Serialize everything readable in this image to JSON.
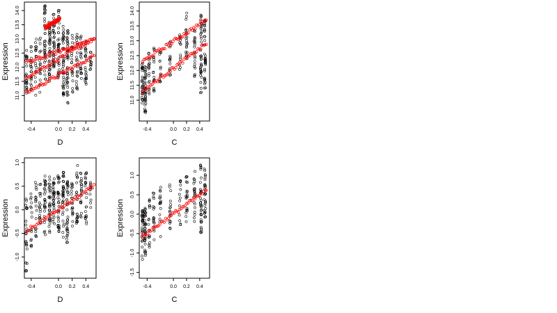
{
  "chart_data": [
    {
      "type": "scatter",
      "xlabel": "D",
      "ylabel": "Expression",
      "xlim": [
        -0.5,
        0.55
      ],
      "ylim": [
        10.1,
        14.3
      ],
      "xticks": [
        "-0.4",
        "0.0",
        "0.2",
        "0.4"
      ],
      "xtick_values": [
        -0.4,
        0.0,
        0.2,
        0.4
      ],
      "yticks": [
        "11.0",
        "11.5",
        "12.0",
        "12.5",
        "13.0",
        "13.5",
        "14.0"
      ],
      "ytick_values": [
        11.0,
        11.5,
        12.0,
        12.5,
        13.0,
        13.5,
        14.0
      ],
      "colors": {
        "observed": "#000000",
        "fitted": "#ff0000"
      },
      "series": [
        {
          "marker": "open-circle",
          "color": "#000000",
          "columns": [
            {
              "x": -0.47,
              "y_min": 10.9,
              "y_max": 12.6,
              "n": 24
            },
            {
              "x": -0.4,
              "y_min": 11.2,
              "y_max": 12.8,
              "n": 20
            },
            {
              "x": -0.33,
              "y_min": 11.0,
              "y_max": 13.0,
              "n": 20
            },
            {
              "x": -0.27,
              "y_min": 11.1,
              "y_max": 13.2,
              "n": 18
            },
            {
              "x": -0.2,
              "y_min": 11.5,
              "y_max": 14.2,
              "n": 36
            },
            {
              "x": -0.13,
              "y_min": 11.5,
              "y_max": 13.6,
              "n": 40
            },
            {
              "x": -0.07,
              "y_min": 11.9,
              "y_max": 13.9,
              "n": 36
            },
            {
              "x": 0.0,
              "y_min": 11.6,
              "y_max": 14.1,
              "n": 38
            },
            {
              "x": 0.07,
              "y_min": 11.0,
              "y_max": 13.5,
              "n": 40
            },
            {
              "x": 0.13,
              "y_min": 10.7,
              "y_max": 13.3,
              "n": 40
            },
            {
              "x": 0.2,
              "y_min": 11.0,
              "y_max": 13.2,
              "n": 22
            },
            {
              "x": 0.27,
              "y_min": 11.2,
              "y_max": 13.4,
              "n": 22
            },
            {
              "x": 0.33,
              "y_min": 11.5,
              "y_max": 13.2,
              "n": 20
            },
            {
              "x": 0.4,
              "y_min": 11.4,
              "y_max": 13.1,
              "n": 24
            },
            {
              "x": 0.47,
              "y_min": 11.9,
              "y_max": 12.6,
              "n": 12
            }
          ]
        },
        {
          "marker": "open-circle",
          "color": "#ff0000",
          "lines": [
            {
              "x": [
                -0.47,
                0.52
              ],
              "y": [
                11.1,
                12.4
              ]
            },
            {
              "x": [
                -0.47,
                0.52
              ],
              "y": [
                11.65,
                13.0
              ]
            },
            {
              "x": [
                -0.47,
                0.52
              ],
              "y": [
                12.15,
                13.0
              ]
            },
            {
              "x": [
                -0.2,
                0.02
              ],
              "y": [
                13.4,
                13.7
              ]
            }
          ]
        }
      ]
    },
    {
      "type": "scatter",
      "xlabel": "C",
      "ylabel": "Expression",
      "xlim": [
        -0.52,
        0.55
      ],
      "ylim": [
        10.3,
        14.3
      ],
      "xticks": [
        "-0.4",
        "0.0",
        "0.2",
        "0.4"
      ],
      "xtick_values": [
        -0.4,
        0.0,
        0.2,
        0.4
      ],
      "yticks": [
        "11.0",
        "11.5",
        "12.0",
        "12.5",
        "13.0",
        "13.5",
        "14.0"
      ],
      "ytick_values": [
        11.0,
        11.5,
        12.0,
        12.5,
        13.0,
        13.5,
        14.0
      ],
      "colors": {
        "observed": "#000000",
        "fitted": "#ff0000"
      },
      "series": [
        {
          "marker": "open-circle",
          "color": "#000000",
          "columns": [
            {
              "x": -0.47,
              "y_min": 10.9,
              "y_max": 12.3,
              "n": 30
            },
            {
              "x": -0.43,
              "y_min": 10.5,
              "y_max": 12.2,
              "n": 40
            },
            {
              "x": -0.37,
              "y_min": 11.2,
              "y_max": 12.7,
              "n": 18
            },
            {
              "x": -0.3,
              "y_min": 11.3,
              "y_max": 12.8,
              "n": 18
            },
            {
              "x": -0.2,
              "y_min": 11.6,
              "y_max": 12.9,
              "n": 16
            },
            {
              "x": -0.05,
              "y_min": 11.8,
              "y_max": 13.0,
              "n": 16
            },
            {
              "x": 0.1,
              "y_min": 12.0,
              "y_max": 13.2,
              "n": 14
            },
            {
              "x": 0.2,
              "y_min": 12.3,
              "y_max": 14.0,
              "n": 22
            },
            {
              "x": 0.32,
              "y_min": 11.8,
              "y_max": 13.5,
              "n": 22
            },
            {
              "x": 0.42,
              "y_min": 11.2,
              "y_max": 14.1,
              "n": 40
            },
            {
              "x": 0.48,
              "y_min": 11.4,
              "y_max": 14.0,
              "n": 36
            }
          ]
        },
        {
          "marker": "open-circle",
          "color": "#ff0000",
          "lines": [
            {
              "x": [
                -0.47,
                0.5
              ],
              "y": [
                11.3,
                12.9
              ]
            },
            {
              "x": [
                -0.47,
                0.5
              ],
              "y": [
                12.3,
                13.7
              ]
            }
          ]
        }
      ]
    },
    {
      "type": "scatter",
      "xlabel": "D",
      "ylabel": "Expression",
      "xlim": [
        -0.5,
        0.55
      ],
      "ylim": [
        -1.45,
        1.1
      ],
      "xticks": [
        "-0.4",
        "0.0",
        "0.2",
        "0.4"
      ],
      "xtick_values": [
        -0.4,
        0.0,
        0.2,
        0.4
      ],
      "yticks": [
        "-1.0",
        "-0.5",
        "0.0",
        "0.5",
        "1.0"
      ],
      "ytick_values": [
        -1.0,
        -0.5,
        0.0,
        0.5,
        1.0
      ],
      "colors": {
        "observed": "#000000",
        "fitted": "#ff0000"
      },
      "series": [
        {
          "marker": "open-circle",
          "color": "#000000",
          "columns": [
            {
              "x": -0.47,
              "y_min": -1.3,
              "y_max": 0.3,
              "n": 24
            },
            {
              "x": -0.4,
              "y_min": -0.8,
              "y_max": 0.4,
              "n": 16
            },
            {
              "x": -0.33,
              "y_min": -0.6,
              "y_max": 0.6,
              "n": 18
            },
            {
              "x": -0.27,
              "y_min": -0.5,
              "y_max": 0.6,
              "n": 18
            },
            {
              "x": -0.2,
              "y_min": -0.6,
              "y_max": 0.8,
              "n": 30
            },
            {
              "x": -0.13,
              "y_min": -0.5,
              "y_max": 0.7,
              "n": 32
            },
            {
              "x": -0.07,
              "y_min": -0.4,
              "y_max": 0.7,
              "n": 30
            },
            {
              "x": 0.0,
              "y_min": -0.5,
              "y_max": 0.9,
              "n": 34
            },
            {
              "x": 0.07,
              "y_min": -0.6,
              "y_max": 0.8,
              "n": 34
            },
            {
              "x": 0.13,
              "y_min": -0.7,
              "y_max": 0.6,
              "n": 36
            },
            {
              "x": 0.2,
              "y_min": -0.4,
              "y_max": 0.6,
              "n": 20
            },
            {
              "x": 0.27,
              "y_min": -0.3,
              "y_max": 1.0,
              "n": 22
            },
            {
              "x": 0.33,
              "y_min": -0.2,
              "y_max": 0.8,
              "n": 20
            },
            {
              "x": 0.4,
              "y_min": -0.3,
              "y_max": 0.8,
              "n": 22
            },
            {
              "x": 0.47,
              "y_min": 0.0,
              "y_max": 0.6,
              "n": 10
            }
          ]
        },
        {
          "marker": "open-circle",
          "color": "#ff0000",
          "lines": [
            {
              "x": [
                -0.47,
                0.52
              ],
              "y": [
                -0.45,
                0.5
              ]
            }
          ]
        }
      ]
    },
    {
      "type": "scatter",
      "xlabel": "C",
      "ylabel": "Expression",
      "xlim": [
        -0.52,
        0.55
      ],
      "ylim": [
        -1.65,
        1.45
      ],
      "xticks": [
        "-0.4",
        "0.0",
        "0.2",
        "0.4"
      ],
      "xtick_values": [
        -0.4,
        0.0,
        0.2,
        0.4
      ],
      "yticks": [
        "-1.5",
        "-1.0",
        "-0.5",
        "0.0",
        "0.5",
        "1.0"
      ],
      "ytick_values": [
        -1.5,
        -1.0,
        -0.5,
        0.0,
        0.5,
        1.0
      ],
      "colors": {
        "observed": "#000000",
        "fitted": "#ff0000"
      },
      "series": [
        {
          "marker": "open-circle",
          "color": "#000000",
          "columns": [
            {
              "x": -0.47,
              "y_min": -1.2,
              "y_max": 0.1,
              "n": 30
            },
            {
              "x": -0.43,
              "y_min": -1.1,
              "y_max": 0.2,
              "n": 36
            },
            {
              "x": -0.37,
              "y_min": -0.9,
              "y_max": 0.4,
              "n": 18
            },
            {
              "x": -0.3,
              "y_min": -0.7,
              "y_max": 0.6,
              "n": 18
            },
            {
              "x": -0.2,
              "y_min": -0.6,
              "y_max": 0.7,
              "n": 16
            },
            {
              "x": -0.05,
              "y_min": -0.4,
              "y_max": 0.8,
              "n": 16
            },
            {
              "x": 0.1,
              "y_min": -0.3,
              "y_max": 0.9,
              "n": 14
            },
            {
              "x": 0.2,
              "y_min": -0.2,
              "y_max": 1.0,
              "n": 20
            },
            {
              "x": 0.32,
              "y_min": -0.3,
              "y_max": 1.1,
              "n": 22
            },
            {
              "x": 0.42,
              "y_min": -0.5,
              "y_max": 1.3,
              "n": 36
            },
            {
              "x": 0.48,
              "y_min": -0.2,
              "y_max": 1.2,
              "n": 30
            }
          ]
        },
        {
          "marker": "open-circle",
          "color": "#ff0000",
          "lines": [
            {
              "x": [
                -0.48,
                0.5
              ],
              "y": [
                -0.58,
                0.62
              ]
            }
          ]
        }
      ]
    }
  ]
}
